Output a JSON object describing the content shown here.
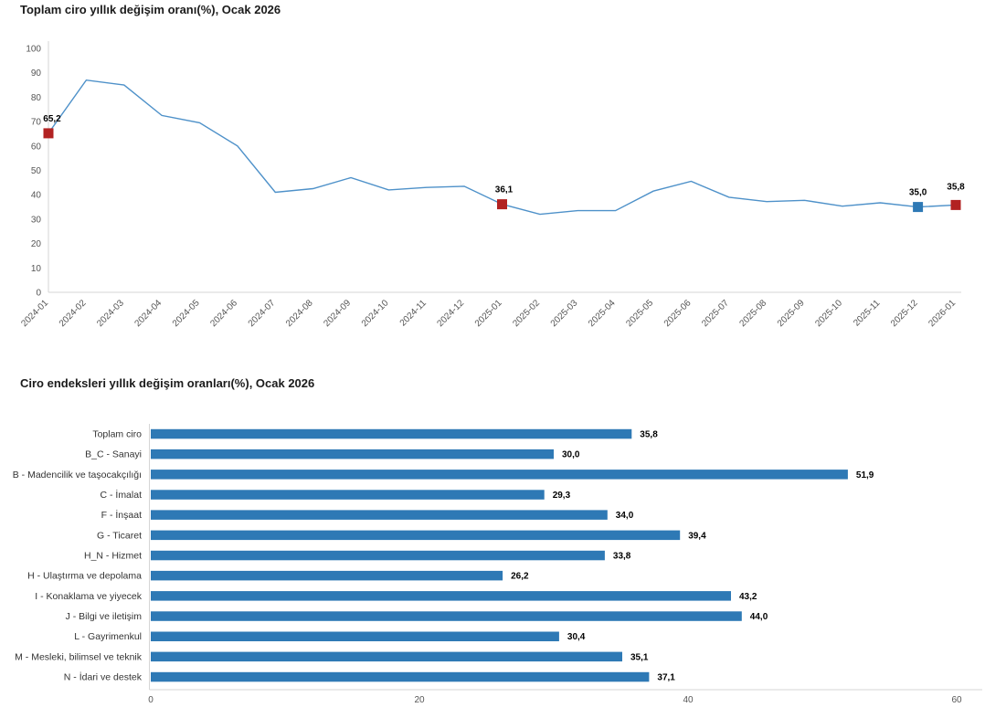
{
  "chart_data": [
    {
      "type": "line",
      "title": "Toplam ciro yıllık değişim oranı(%), Ocak 2026",
      "x": [
        "2024-01",
        "2024-02",
        "2024-03",
        "2024-04",
        "2024-05",
        "2024-06",
        "2024-07",
        "2024-08",
        "2024-09",
        "2024-10",
        "2024-11",
        "2024-12",
        "2025-01",
        "2025-02",
        "2025-03",
        "2025-04",
        "2025-05",
        "2025-06",
        "2025-07",
        "2025-08",
        "2025-09",
        "2025-10",
        "2025-11",
        "2025-12",
        "2026-01"
      ],
      "values": [
        65.2,
        87,
        85,
        72.5,
        69.5,
        60,
        41,
        42.5,
        47,
        42,
        43,
        43.5,
        36.1,
        32,
        33.5,
        33.5,
        41.5,
        45.5,
        39,
        37.2,
        37.7,
        35.3,
        36.7,
        35.0,
        35.8
      ],
      "ylim": [
        0,
        100
      ],
      "ytick_step": 10,
      "yticks": [
        0,
        10,
        20,
        30,
        40,
        50,
        60,
        70,
        80,
        90,
        100
      ],
      "line_color": "#4e91c9",
      "annotations": [
        {
          "index": 0,
          "label": "65,2",
          "marker": "square",
          "color": "#b22222",
          "dx": 4,
          "dy": 0
        },
        {
          "index": 12,
          "label": "36,1",
          "marker": "square",
          "color": "#b22222",
          "dx": 2,
          "dy": 0
        },
        {
          "index": 23,
          "label": "35,0",
          "marker": "square",
          "color": "#2e79b5",
          "dx": 0,
          "dy": 0
        },
        {
          "index": 24,
          "label": "35,8",
          "marker": "square",
          "color": "#b22222",
          "dx": 0,
          "dy": -4
        }
      ]
    },
    {
      "type": "bar",
      "title": "Ciro endeksleri yıllık değişim oranları(%), Ocak 2026",
      "categories": [
        "Toplam ciro",
        "B_C - Sanayi",
        "B - Madencilik ve taşocakçılığı",
        "C - İmalat",
        "F - İnşaat",
        "G - Ticaret",
        "H_N - Hizmet",
        "H - Ulaştırma ve depolama",
        "I - Konaklama ve yiyecek",
        "J - Bilgi ve iletişim",
        "L - Gayrimenkul",
        "M - Mesleki, bilimsel ve teknik",
        "N - İdari ve destek"
      ],
      "values": [
        35.8,
        30.0,
        51.9,
        29.3,
        34.0,
        39.4,
        33.8,
        26.2,
        43.2,
        44.0,
        30.4,
        35.1,
        37.1
      ],
      "value_labels": [
        "35,8",
        "30,0",
        "51,9",
        "29,3",
        "34,0",
        "39,4",
        "33,8",
        "26,2",
        "43,2",
        "44,0",
        "30,4",
        "35,1",
        "37,1"
      ],
      "xlim": [
        0,
        60
      ],
      "xticks": [
        0,
        20,
        40,
        60
      ],
      "bar_color": "#2e79b5",
      "grid": false,
      "legend": "none"
    }
  ],
  "colors": {
    "marker_red": "#b22222",
    "marker_blue": "#2e79b5",
    "line_blue": "#4e91c9",
    "bar_blue": "#2e79b5",
    "axis_gray": "#d6d6d6",
    "background": "#ffffff"
  }
}
